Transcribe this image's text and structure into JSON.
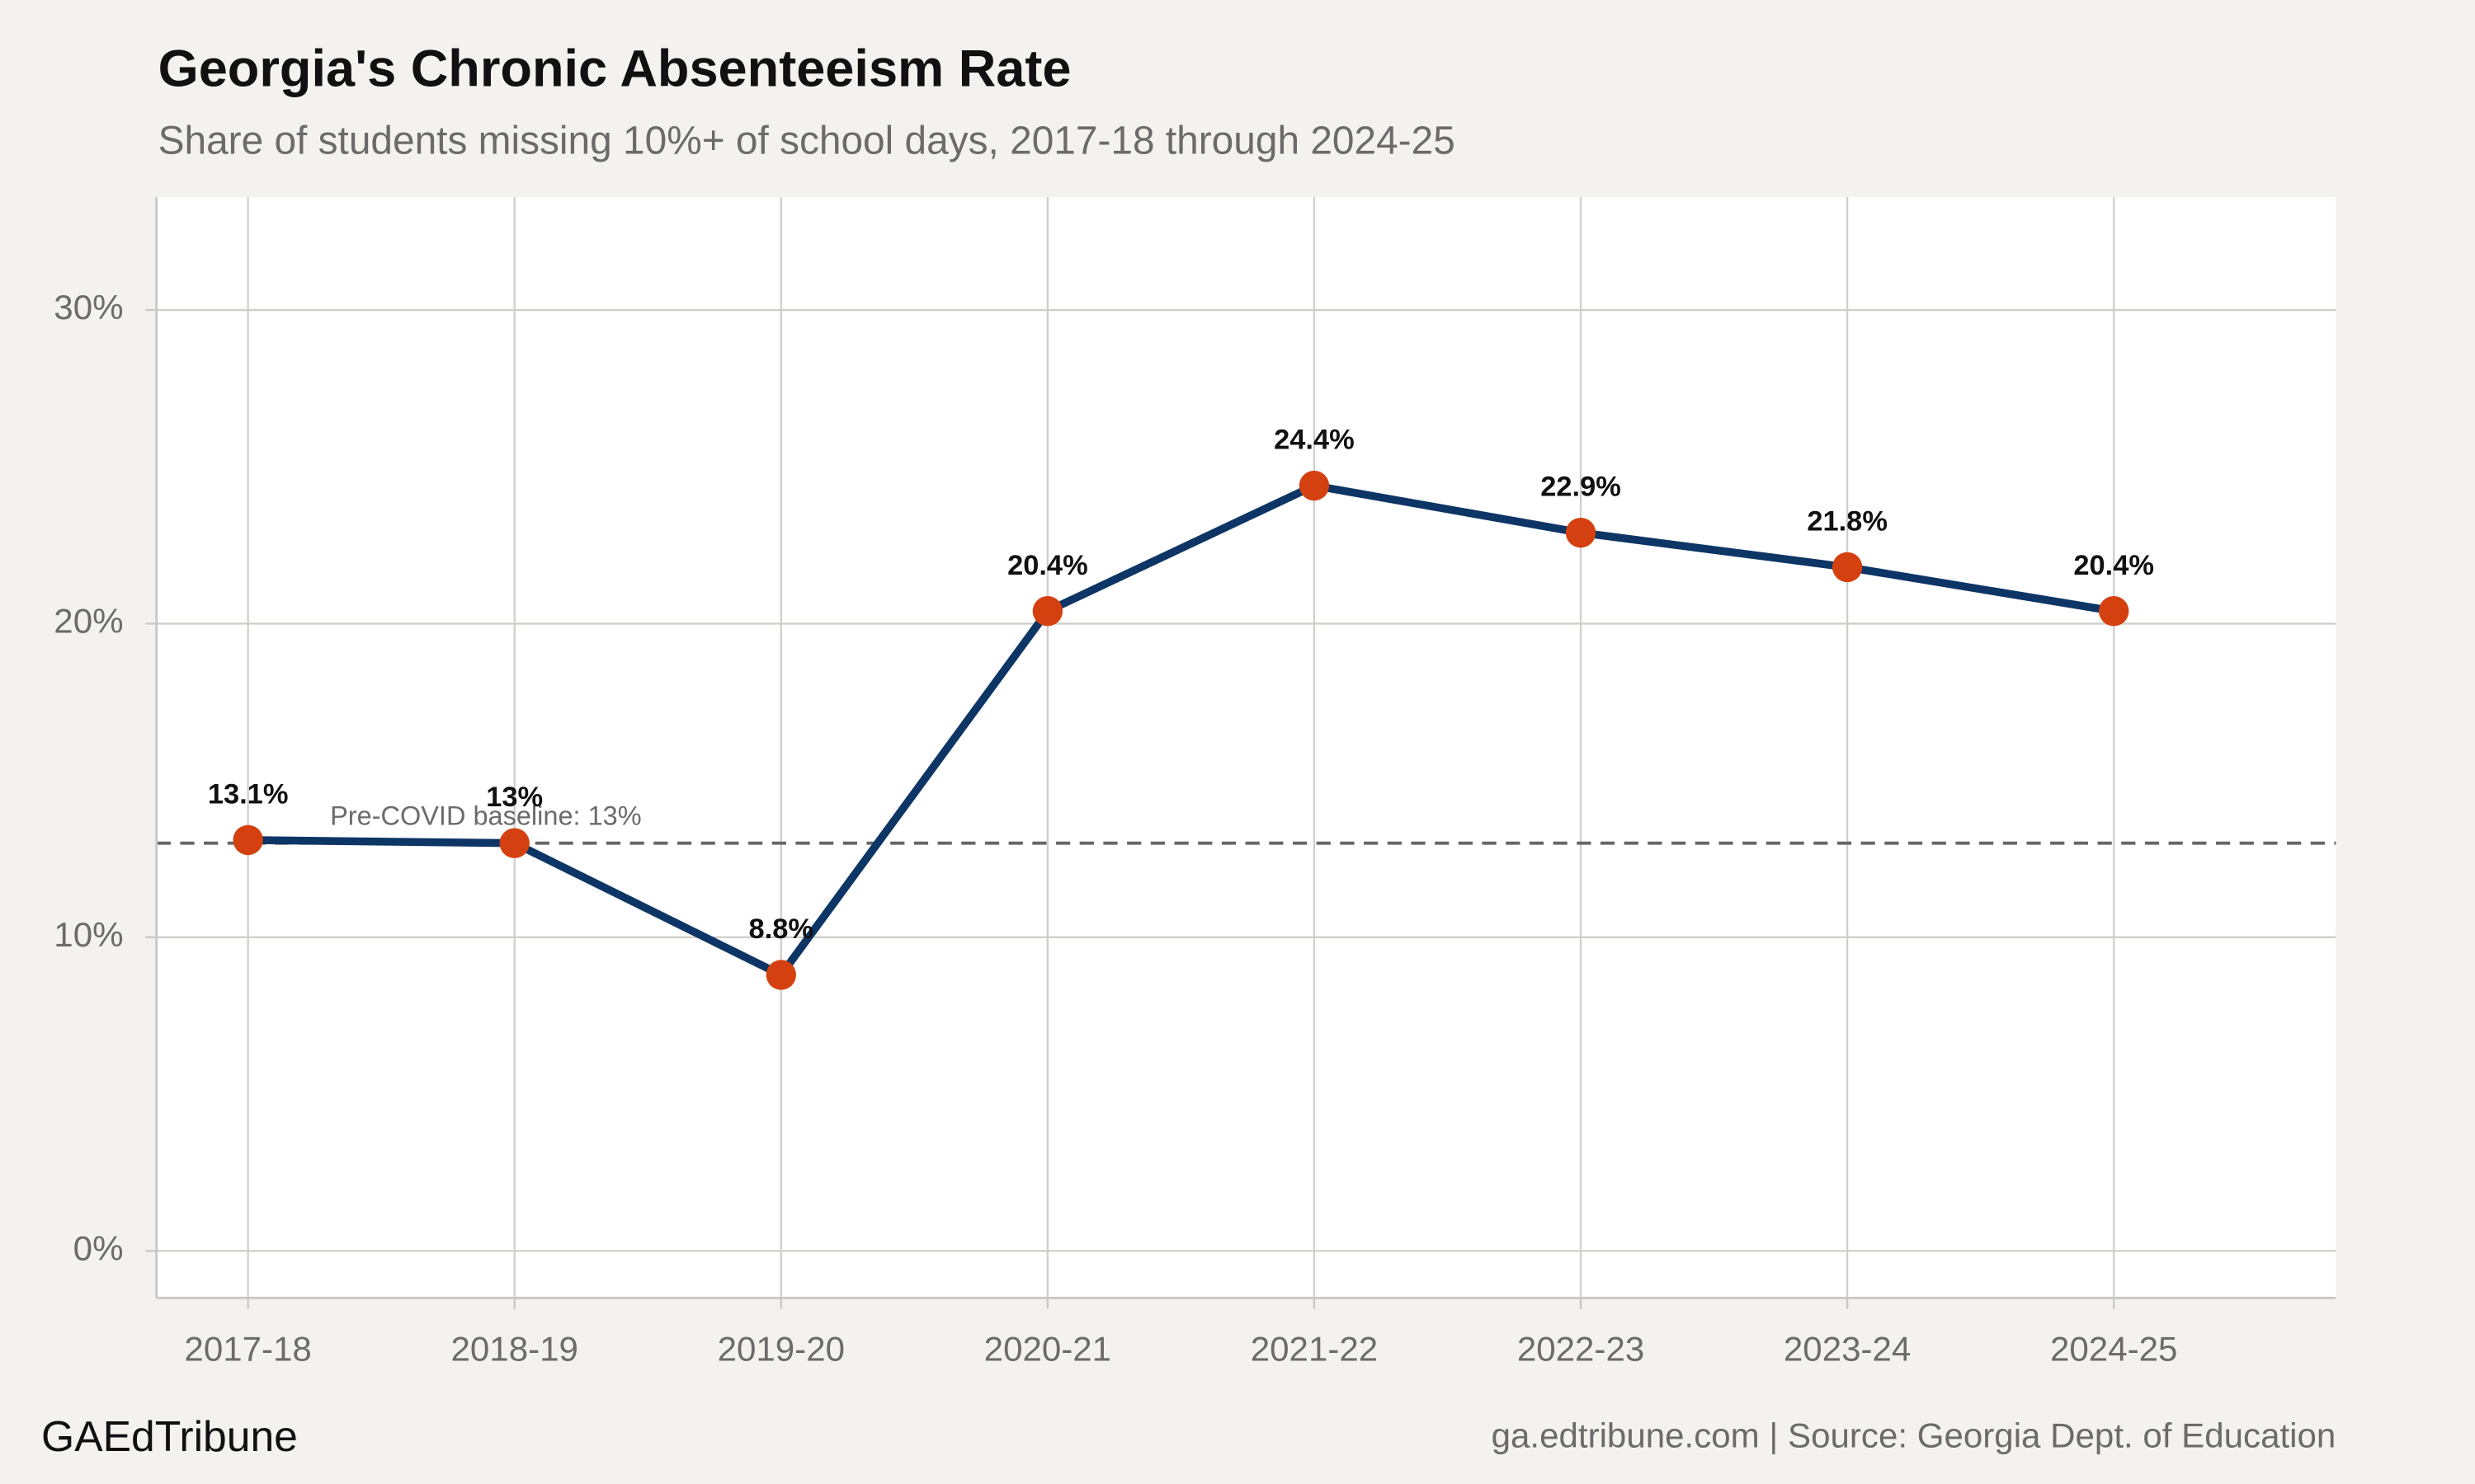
{
  "chart_data": {
    "type": "line",
    "title": "Georgia's Chronic Absenteeism Rate",
    "subtitle": "Share of students missing 10%+ of school days, 2017-18 through 2024-25",
    "categories": [
      "2017-18",
      "2018-19",
      "2019-20",
      "2020-21",
      "2021-22",
      "2022-23",
      "2023-24",
      "2024-25"
    ],
    "values": [
      13.1,
      13,
      8.8,
      20.4,
      24.4,
      22.9,
      21.8,
      20.4
    ],
    "value_labels": [
      "13.1%",
      "13%",
      "8.8%",
      "20.4%",
      "24.4%",
      "22.9%",
      "21.8%",
      "20.4%"
    ],
    "color": "#0d3566",
    "point_color": "#d4400f",
    "ylim": [
      -1.5,
      33.6
    ],
    "yticks": [
      {
        "value": 0,
        "label": "0%"
      },
      {
        "value": 10,
        "label": "10%"
      },
      {
        "value": 20,
        "label": "20%"
      },
      {
        "value": 30,
        "label": "30%"
      }
    ],
    "grid": true,
    "reference_line": {
      "value": 13,
      "label": "Pre-COVID baseline: 13%"
    },
    "brand": "GAEdTribune",
    "source": "ga.edtribune.com | Source: Georgia Dept. of Education"
  }
}
